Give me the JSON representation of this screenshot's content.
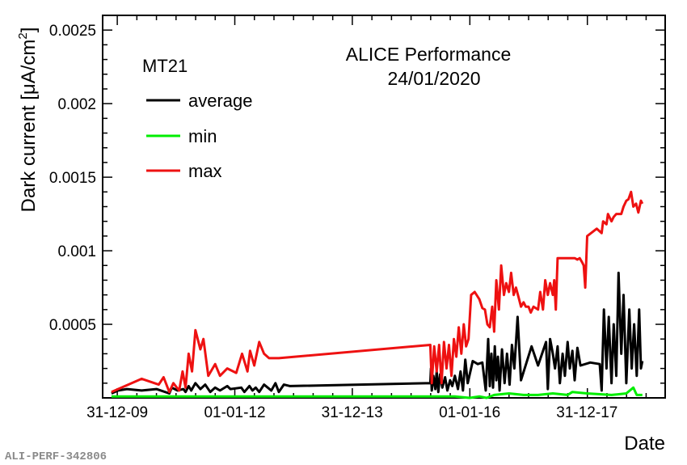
{
  "chart_data": {
    "type": "line",
    "ylabel": "Dark current [μA/cm",
    "ylabel_sup": "2",
    "ylabel_close": "]",
    "xlabel": "Date",
    "annotation_title": "ALICE Performance",
    "annotation_date": "24/01/2020",
    "legend_title": "MT21",
    "legend_position": "top-left",
    "xlim": [
      "2009-10-01",
      "2019-05-01"
    ],
    "ylim": [
      0,
      0.0026
    ],
    "x_ticks": [
      {
        "date": "2009-12-31",
        "label": "31-12-09"
      },
      {
        "date": "2012-01-01",
        "label": "01-01-12"
      },
      {
        "date": "2013-12-31",
        "label": "31-12-13"
      },
      {
        "date": "2016-01-01",
        "label": "01-01-16"
      },
      {
        "date": "2017-12-31",
        "label": "31-12-17"
      }
    ],
    "y_ticks": [
      {
        "value": 0.0005,
        "label": "0.0005"
      },
      {
        "value": 0.001,
        "label": "0.001"
      },
      {
        "value": 0.0015,
        "label": "0.0015"
      },
      {
        "value": 0.002,
        "label": "0.002"
      },
      {
        "value": 0.0025,
        "label": "0.0025"
      }
    ],
    "series": [
      {
        "name": "average",
        "color": "#000000",
        "x": [
          "2009-11-25",
          "2010-01-05",
          "2010-03-01",
          "2010-06-01",
          "2010-09-01",
          "2010-11-20",
          "2010-12-05",
          "2011-01-10",
          "2011-02-15",
          "2011-03-01",
          "2011-03-20",
          "2011-04-05",
          "2011-05-01",
          "2011-06-01",
          "2011-07-01",
          "2011-08-01",
          "2011-09-01",
          "2011-10-01",
          "2011-11-15",
          "2011-12-05",
          "2012-02-10",
          "2012-03-01",
          "2012-04-01",
          "2012-04-20",
          "2012-05-10",
          "2012-06-01",
          "2012-07-01",
          "2012-08-15",
          "2012-09-10",
          "2012-10-01",
          "2012-11-01",
          "2012-12-10",
          "2015-05-01",
          "2015-05-05",
          "2015-05-10",
          "2015-05-20",
          "2015-06-01",
          "2015-06-10",
          "2015-06-20",
          "2015-07-01",
          "2015-07-15",
          "2015-08-01",
          "2015-08-15",
          "2015-09-01",
          "2015-09-15",
          "2015-10-01",
          "2015-10-20",
          "2015-11-05",
          "2015-11-20",
          "2015-12-05",
          "2015-12-20",
          "2016-01-20",
          "2016-02-20",
          "2016-03-20",
          "2016-04-10",
          "2016-04-25",
          "2016-05-05",
          "2016-05-15",
          "2016-05-25",
          "2016-06-05",
          "2016-06-15",
          "2016-06-25",
          "2016-07-05",
          "2016-07-20",
          "2016-08-05",
          "2016-08-20",
          "2016-09-05",
          "2016-09-20",
          "2016-10-05",
          "2016-10-25",
          "2016-11-15",
          "2017-01-20",
          "2017-03-01",
          "2017-04-20",
          "2017-05-01",
          "2017-05-15",
          "2017-06-01",
          "2017-06-15",
          "2017-07-01",
          "2017-07-15",
          "2017-08-01",
          "2017-08-15",
          "2017-09-01",
          "2017-09-15",
          "2017-10-01",
          "2017-10-15",
          "2017-11-01",
          "2017-11-20",
          "2018-01-20",
          "2018-03-20",
          "2018-04-01",
          "2018-04-15",
          "2018-05-01",
          "2018-05-15",
          "2018-06-01",
          "2018-06-15",
          "2018-07-01",
          "2018-07-15",
          "2018-08-01",
          "2018-08-15",
          "2018-09-01",
          "2018-09-20",
          "2018-10-05",
          "2018-10-20",
          "2018-11-05",
          "2018-11-20",
          "2018-12-01",
          "2018-12-10"
        ],
        "y": [
          3e-05,
          5e-05,
          6e-05,
          5e-05,
          6e-05,
          3e-05,
          7e-05,
          5e-05,
          6e-05,
          4e-05,
          8e-05,
          5e-05,
          0.0001,
          6e-05,
          9e-05,
          4e-05,
          7e-05,
          5e-05,
          8e-05,
          6e-05,
          7e-05,
          4e-05,
          8e-05,
          5e-05,
          7e-05,
          4e-05,
          9e-05,
          5e-05,
          0.0001,
          4e-05,
          9e-05,
          8e-05,
          0.0001,
          0.0002,
          5e-05,
          0.00015,
          6e-05,
          0.00018,
          4e-05,
          0.00016,
          7e-05,
          0.00014,
          5e-05,
          0.00012,
          8e-05,
          0.00015,
          6e-05,
          0.00018,
          5e-05,
          0.00026,
          0.0001,
          0.00025,
          0.00023,
          0.00024,
          5e-05,
          0.0004,
          8e-05,
          0.0003,
          7e-05,
          0.00035,
          0.00012,
          0.00028,
          5e-05,
          0.00033,
          0.0001,
          0.0003,
          9e-05,
          0.00036,
          0.0002,
          0.00055,
          0.00012,
          0.00035,
          0.00022,
          0.00038,
          6e-05,
          0.0004,
          0.0003,
          0.0002,
          0.00035,
          0.0001,
          0.0003,
          0.00015,
          0.00038,
          0.0002,
          0.00032,
          0.00012,
          0.00034,
          0.00022,
          0.00024,
          0.00023,
          5e-05,
          0.0006,
          0.0002,
          0.00055,
          0.0001,
          0.0005,
          0.00015,
          0.00085,
          0.0003,
          0.0007,
          0.0001,
          0.0006,
          0.0002,
          0.0005,
          0.00015,
          0.0006,
          0.0002,
          0.00025
        ]
      },
      {
        "name": "min",
        "color": "#00ee00",
        "x": [
          "2009-11-25",
          "2011-01-01",
          "2012-01-01",
          "2013-01-01",
          "2014-01-01",
          "2015-01-01",
          "2015-10-01",
          "2016-01-01",
          "2016-03-01",
          "2016-04-15",
          "2016-06-01",
          "2016-09-01",
          "2016-12-01",
          "2017-03-01",
          "2017-06-01",
          "2017-09-01",
          "2017-10-01",
          "2018-01-01",
          "2018-06-01",
          "2018-09-01",
          "2018-10-15",
          "2018-11-05",
          "2018-12-10"
        ],
        "y": [
          1e-05,
          1e-05,
          1e-05,
          1e-05,
          1e-05,
          1e-05,
          1e-05,
          0.0,
          1e-05,
          0.0,
          2e-05,
          3e-05,
          2e-05,
          2e-05,
          3e-05,
          2e-05,
          4e-05,
          3e-05,
          2e-05,
          3e-05,
          7e-05,
          2e-05,
          2e-05
        ]
      },
      {
        "name": "max",
        "color": "#ee1111",
        "x": [
          "2009-11-25",
          "2010-01-05",
          "2010-06-01",
          "2010-09-15",
          "2010-10-15",
          "2010-11-20",
          "2010-12-15",
          "2011-01-20",
          "2011-02-10",
          "2011-03-01",
          "2011-03-20",
          "2011-04-10",
          "2011-05-01",
          "2011-06-01",
          "2011-06-20",
          "2011-07-20",
          "2011-09-01",
          "2011-10-01",
          "2011-11-15",
          "2012-01-10",
          "2012-02-15",
          "2012-03-20",
          "2012-04-05",
          "2012-05-01",
          "2012-06-01",
          "2012-07-01",
          "2012-08-01",
          "2012-09-01",
          "2012-10-01",
          "2015-05-01",
          "2015-05-10",
          "2015-05-25",
          "2015-06-10",
          "2015-06-25",
          "2015-07-10",
          "2015-07-25",
          "2015-08-10",
          "2015-08-25",
          "2015-09-10",
          "2015-09-25",
          "2015-10-10",
          "2015-10-25",
          "2015-11-10",
          "2015-11-25",
          "2015-12-10",
          "2015-12-25",
          "2016-01-10",
          "2016-02-01",
          "2016-03-01",
          "2016-03-20",
          "2016-04-05",
          "2016-04-20",
          "2016-05-05",
          "2016-05-20",
          "2016-06-01",
          "2016-06-15",
          "2016-07-01",
          "2016-07-15",
          "2016-08-01",
          "2016-08-15",
          "2016-09-01",
          "2016-09-15",
          "2016-10-01",
          "2016-10-15",
          "2016-11-01",
          "2016-11-15",
          "2016-12-01",
          "2016-12-15",
          "2017-01-01",
          "2017-01-15",
          "2017-02-01",
          "2017-03-01",
          "2017-03-15",
          "2017-04-01",
          "2017-04-15",
          "2017-05-01",
          "2017-05-15",
          "2017-06-01",
          "2017-06-10",
          "2017-06-20",
          "2017-07-01",
          "2017-10-15",
          "2017-11-01",
          "2017-11-15",
          "2017-12-01",
          "2017-12-10",
          "2017-12-20",
          "2018-01-01",
          "2018-03-01",
          "2018-04-01",
          "2018-04-10",
          "2018-05-01",
          "2018-05-10",
          "2018-06-01",
          "2018-06-15",
          "2018-07-01",
          "2018-08-01",
          "2018-08-15",
          "2018-09-01",
          "2018-09-15",
          "2018-10-01",
          "2018-10-15",
          "2018-11-01",
          "2018-11-15",
          "2018-12-01",
          "2018-12-10"
        ],
        "y": [
          4e-05,
          6e-05,
          0.00013,
          9e-05,
          0.00014,
          4e-05,
          0.0001,
          5e-05,
          0.00018,
          7e-05,
          0.0003,
          0.00018,
          0.00046,
          0.00033,
          0.0004,
          0.00015,
          0.00023,
          0.00015,
          0.0002,
          0.00017,
          0.0003,
          0.00018,
          0.00032,
          0.00022,
          0.00038,
          0.0003,
          0.00027,
          0.00027,
          0.00027,
          0.00036,
          0.0001,
          0.00035,
          0.00018,
          0.00036,
          0.0001,
          0.00038,
          0.0002,
          0.00036,
          0.00015,
          0.0004,
          0.00028,
          0.00048,
          0.0003,
          0.0005,
          0.00035,
          0.0004,
          0.0007,
          0.00072,
          0.00067,
          0.00061,
          0.0006,
          0.0005,
          0.00048,
          0.00062,
          0.00045,
          0.0008,
          0.0006,
          0.0009,
          0.0007,
          0.00078,
          0.00072,
          0.00085,
          0.0007,
          0.00075,
          0.00068,
          0.00062,
          0.00065,
          0.00062,
          0.00062,
          0.00058,
          0.00062,
          0.0006,
          0.00072,
          0.0006,
          0.0008,
          0.0007,
          0.00078,
          0.0007,
          0.0008,
          0.0006,
          0.00095,
          0.00095,
          0.00094,
          0.00095,
          0.00092,
          0.0009,
          0.00075,
          0.0011,
          0.00115,
          0.00112,
          0.0012,
          0.00118,
          0.00125,
          0.0012,
          0.00123,
          0.00125,
          0.00125,
          0.0013,
          0.00134,
          0.00135,
          0.0014,
          0.0013,
          0.00132,
          0.00126,
          0.00134,
          0.00132
        ]
      }
    ]
  },
  "footer": {
    "image_id": "ALI-PERF-342806"
  }
}
